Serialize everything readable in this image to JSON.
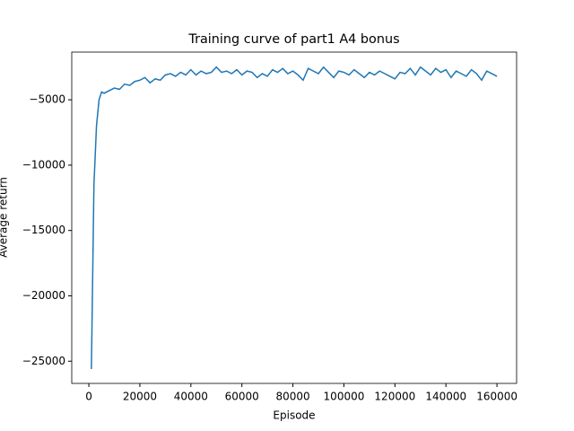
{
  "chart_data": {
    "type": "line",
    "title": "Training curve of part1 A4 bonus",
    "xlabel": "Episode",
    "ylabel": "Average return",
    "x": [
      1000,
      2000,
      3000,
      4000,
      5000,
      6000,
      8000,
      10000,
      12000,
      14000,
      16000,
      18000,
      20000,
      22000,
      24000,
      26000,
      28000,
      30000,
      32000,
      34000,
      36000,
      38000,
      40000,
      42000,
      44000,
      46000,
      48000,
      50000,
      52000,
      54000,
      56000,
      58000,
      60000,
      62000,
      64000,
      66000,
      68000,
      70000,
      72000,
      74000,
      76000,
      78000,
      80000,
      82000,
      84000,
      86000,
      88000,
      90000,
      92000,
      94000,
      96000,
      98000,
      100000,
      102000,
      104000,
      106000,
      108000,
      110000,
      112000,
      114000,
      116000,
      118000,
      120000,
      122000,
      124000,
      126000,
      128000,
      130000,
      132000,
      134000,
      136000,
      138000,
      140000,
      142000,
      144000,
      146000,
      148000,
      150000,
      152000,
      154000,
      156000,
      158000,
      160000
    ],
    "series": [
      {
        "name": "Average return",
        "color": "#1f77b4",
        "values": [
          -25600,
          -11500,
          -7000,
          -5000,
          -4400,
          -4500,
          -4300,
          -4100,
          -4200,
          -3800,
          -3900,
          -3600,
          -3500,
          -3300,
          -3700,
          -3400,
          -3500,
          -3100,
          -3000,
          -3200,
          -2900,
          -3100,
          -2700,
          -3100,
          -2800,
          -3000,
          -2900,
          -2500,
          -2900,
          -2800,
          -3000,
          -2700,
          -3100,
          -2800,
          -2900,
          -3300,
          -3000,
          -3200,
          -2700,
          -2900,
          -2600,
          -3000,
          -2800,
          -3100,
          -3500,
          -2600,
          -2800,
          -3000,
          -2500,
          -2900,
          -3300,
          -2800,
          -2900,
          -3100,
          -2700,
          -3000,
          -3300,
          -2900,
          -3100,
          -2800,
          -3000,
          -3200,
          -3400,
          -2900,
          -3000,
          -2600,
          -3100,
          -2500,
          -2800,
          -3100,
          -2600,
          -2900,
          -2700,
          -3300,
          -2800,
          -3000,
          -3200,
          -2700,
          -3000,
          -3500,
          -2800,
          -3000,
          -3200
        ]
      }
    ],
    "xlim": [
      -6700,
      167700
    ],
    "ylim": [
      -26700,
      -1350
    ],
    "xticks": [
      0,
      20000,
      40000,
      60000,
      80000,
      100000,
      120000,
      140000,
      160000
    ],
    "yticks": [
      {
        "value": -25000,
        "label": "−25000"
      },
      {
        "value": -20000,
        "label": "−20000"
      },
      {
        "value": -15000,
        "label": "−15000"
      },
      {
        "value": -10000,
        "label": "−10000"
      },
      {
        "value": -5000,
        "label": "−5000"
      }
    ],
    "grid": false
  }
}
